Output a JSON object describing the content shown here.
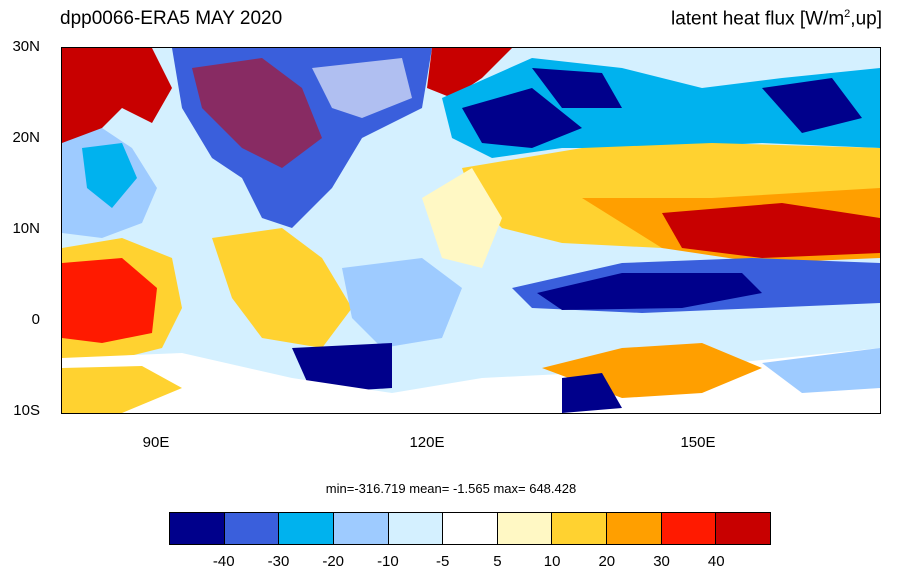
{
  "header": {
    "title_left": "dpp0066-ERA5  MAY 2020",
    "title_right_prefix": "latent heat flux [W/m",
    "title_right_sup": "2",
    "title_right_suffix": ",up]"
  },
  "map": {
    "lat_labels": [
      "30N",
      "20N",
      "10N",
      "0",
      "10S"
    ],
    "lon_labels": [
      "90E",
      "120E",
      "150E"
    ],
    "region": {
      "lon_min": 80,
      "lon_max": 171,
      "lat_min": -10,
      "lat_max": 30
    }
  },
  "stats": {
    "text": "min=-316.719  mean=  -1.565  max= 648.428"
  },
  "colorbar": {
    "colors": [
      "#00008b",
      "#3a5fdc",
      "#00b2ee",
      "#9ecbff",
      "#d4f0ff",
      "#ffffff",
      "#fff8c4",
      "#ffd230",
      "#ff9f00",
      "#ff1a00",
      "#c80000"
    ],
    "labels": [
      "-40",
      "-30",
      "-20",
      "-10",
      "-5",
      "5",
      "10",
      "20",
      "30",
      "40"
    ]
  }
}
